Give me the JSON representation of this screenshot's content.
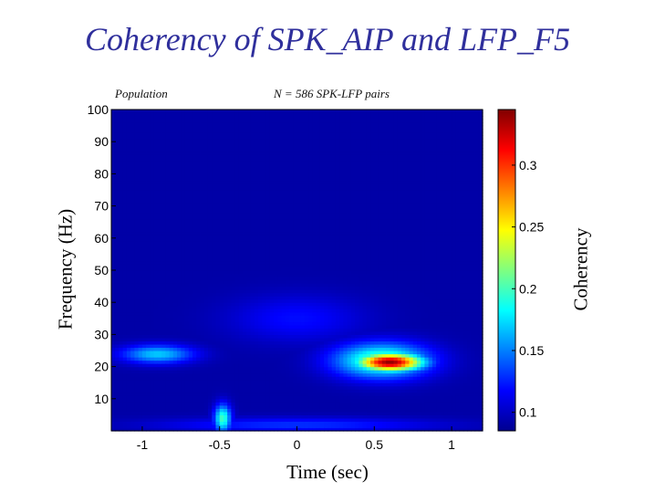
{
  "chart_data": {
    "type": "heatmap",
    "title": "Coherency of SPK_AIP and LFP_F5",
    "subtitle_left": "Population",
    "subtitle_right": "N = 586 SPK-LFP pairs",
    "xlabel": "Time (sec)",
    "ylabel": "Frequency (Hz)",
    "colorbar_label": "Coherency",
    "xlim": [
      -1.2,
      1.2
    ],
    "ylim": [
      0,
      100
    ],
    "x_ticks": [
      -1,
      -0.5,
      0,
      0.5,
      1
    ],
    "x_tick_labels": [
      "-1",
      "-0.5",
      "0",
      "0.5",
      "1"
    ],
    "y_ticks": [
      10,
      20,
      30,
      40,
      50,
      60,
      70,
      80,
      90,
      100
    ],
    "y_tick_labels": [
      "10",
      "20",
      "30",
      "40",
      "50",
      "60",
      "70",
      "80",
      "90",
      "100"
    ],
    "colorbar_range": [
      0.085,
      0.345
    ],
    "colorbar_ticks": [
      0.1,
      0.15,
      0.2,
      0.25,
      0.3
    ],
    "colorbar_tick_labels": [
      "0.1",
      "0.15",
      "0.2",
      "0.25",
      "0.3"
    ],
    "colormap": "jet",
    "baseline_coherency": 0.095,
    "regions": [
      {
        "x_range": [
          0.3,
          0.9
        ],
        "y_range": [
          18,
          26
        ],
        "peak_x": 0.6,
        "peak_y": 21.5,
        "peak_value": 0.34
      },
      {
        "x_range": [
          0.15,
          1.0
        ],
        "y_range": [
          15,
          30
        ],
        "peak_x": 0.55,
        "peak_y": 22,
        "peak_value": 0.21
      },
      {
        "x_range": [
          -1.2,
          -0.55
        ],
        "y_range": [
          20,
          28
        ],
        "peak_x": -0.9,
        "peak_y": 24,
        "peak_value": 0.17
      },
      {
        "x_range": [
          -0.55,
          -0.4
        ],
        "y_range": [
          0,
          12
        ],
        "peak_x": -0.48,
        "peak_y": 4,
        "peak_value": 0.2
      },
      {
        "x_range": [
          -1.2,
          1.2
        ],
        "y_range": [
          0,
          6
        ],
        "peak_x": 0.0,
        "peak_y": 2,
        "peak_value": 0.13
      },
      {
        "x_range": [
          -0.6,
          0.6
        ],
        "y_range": [
          25,
          45
        ],
        "peak_x": 0.0,
        "peak_y": 35,
        "peak_value": 0.12
      }
    ]
  }
}
